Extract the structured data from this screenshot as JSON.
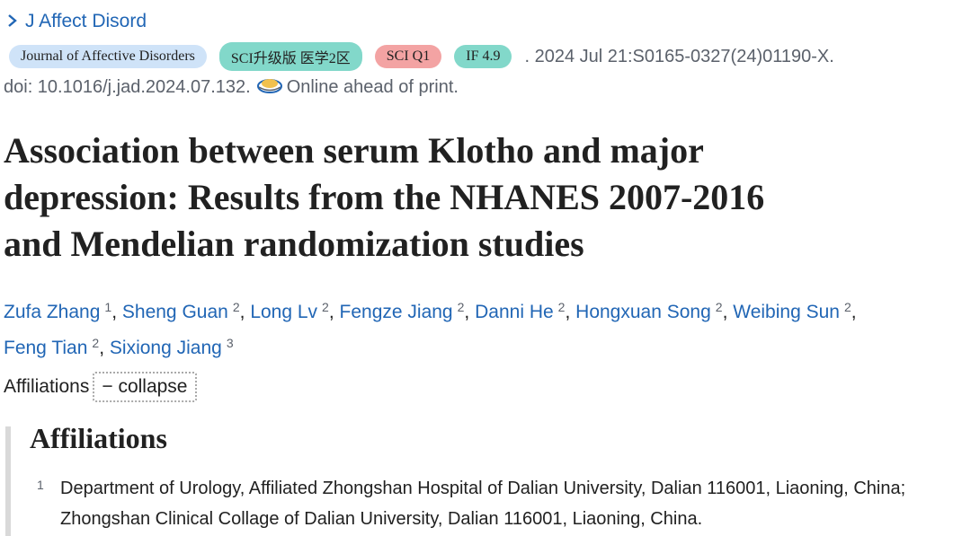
{
  "journal_link": "J Affect Disord",
  "badges": [
    "Journal of Affective Disorders",
    "SCI升级版 医学2区",
    "SCI Q1",
    "IF 4.9"
  ],
  "citation": ". 2024 Jul 21:S0165-0327(24)01190-X.",
  "doi": "doi: 10.1016/j.jad.2024.07.132.",
  "publication_status": "Online ahead of print.",
  "title_lines": [
    "Association between serum Klotho and major",
    "depression: Results from the NHANES 2007-2016",
    "and Mendelian randomization studies"
  ],
  "authors": [
    {
      "name": "Zufa Zhang",
      "affiliation": "1"
    },
    {
      "name": "Sheng Guan",
      "affiliation": "2"
    },
    {
      "name": "Long Lv",
      "affiliation": "2"
    },
    {
      "name": "Fengze Jiang",
      "affiliation": "2"
    },
    {
      "name": "Danni He",
      "affiliation": "2"
    },
    {
      "name": "Hongxuan Song",
      "affiliation": "2"
    },
    {
      "name": "Weibing Sun",
      "affiliation": "2"
    },
    {
      "name": "Feng Tian",
      "affiliation": "2"
    },
    {
      "name": "Sixiong Jiang",
      "affiliation": "3"
    }
  ],
  "author_separator": ",",
  "affiliations_label": "Affiliations",
  "collapse_button": "− collapse",
  "affiliations": {
    "heading": "Affiliations",
    "items": [
      {
        "number": "1",
        "text": "Department of Urology, Affiliated Zhongshan Hospital of Dalian University, Dalian 116001, Liaoning, China; Zhongshan Clinical Collage of Dalian University, Dalian 116001, Liaoning, China."
      }
    ]
  }
}
